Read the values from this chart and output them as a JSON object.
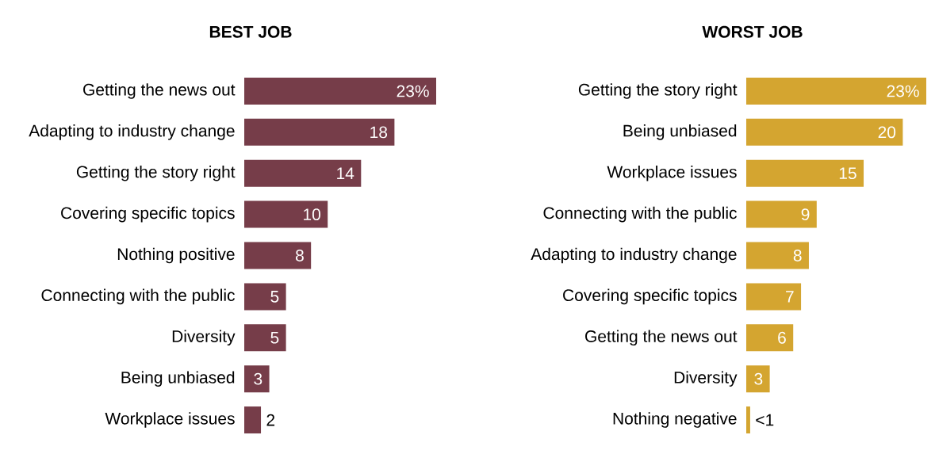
{
  "chart_data": [
    {
      "type": "bar",
      "orientation": "horizontal",
      "title": "BEST JOB",
      "categories": [
        "Getting the news out",
        "Adapting to industry change",
        "Getting the story right",
        "Covering specific topics",
        "Nothing positive",
        "Connecting with the public",
        "Diversity",
        "Being unbiased",
        "Workplace issues"
      ],
      "values": [
        23,
        18,
        14,
        10,
        8,
        5,
        5,
        3,
        2
      ],
      "value_labels": [
        "23%",
        "18",
        "14",
        "10",
        "8",
        "5",
        "5",
        "3",
        "2"
      ],
      "color": "#763d49"
    },
    {
      "type": "bar",
      "orientation": "horizontal",
      "title": "WORST JOB",
      "categories": [
        "Getting the story right",
        "Being unbiased",
        "Workplace issues",
        "Connecting with the public",
        "Adapting to industry change",
        "Covering specific topics",
        "Getting the news out",
        "Diversity",
        "Nothing negative"
      ],
      "values": [
        23,
        20,
        15,
        9,
        8,
        7,
        6,
        3,
        0.5
      ],
      "value_labels": [
        "23%",
        "20",
        "15",
        "9",
        "8",
        "7",
        "6",
        "3",
        "<1"
      ],
      "color": "#d4a530"
    }
  ]
}
